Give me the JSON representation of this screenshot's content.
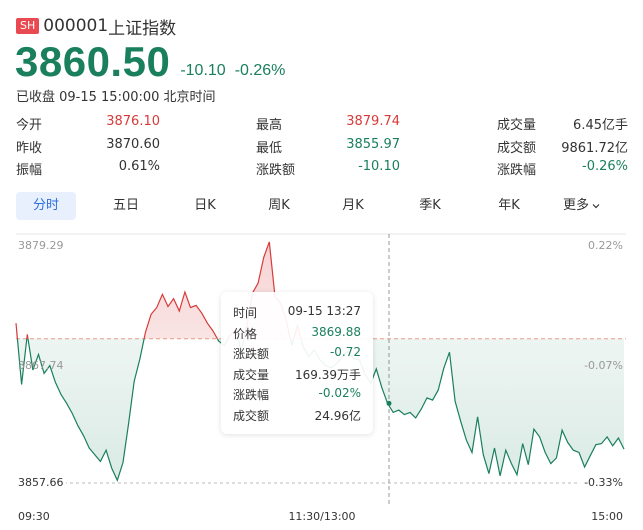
{
  "header": {
    "badge": "SH",
    "code": "000001",
    "name": "上证指数",
    "price": "3860.50",
    "change": "-10.10",
    "change_pct": "-0.26%",
    "status": "已收盘 09-15 15:00:00 北京时间"
  },
  "stats": {
    "rows": [
      [
        {
          "label": "今开",
          "value": "3876.10",
          "color": "red"
        },
        {
          "label": "最高",
          "value": "3879.74",
          "color": "red"
        },
        {
          "label": "成交量",
          "value": "6.45亿手",
          "color": "dark"
        }
      ],
      [
        {
          "label": "昨收",
          "value": "3870.60",
          "color": "dark"
        },
        {
          "label": "最低",
          "value": "3855.97",
          "color": "green"
        },
        {
          "label": "成交额",
          "value": "9861.72亿",
          "color": "dark"
        }
      ],
      [
        {
          "label": "振幅",
          "value": "0.61%",
          "color": "dark"
        },
        {
          "label": "涨跌额",
          "value": "-10.10",
          "color": "green"
        },
        {
          "label": "涨跌幅",
          "value": "-0.26%",
          "color": "green"
        }
      ]
    ]
  },
  "tabs": [
    "分时",
    "五日",
    "日K",
    "周K",
    "月K",
    "季K",
    "年K",
    "更多"
  ],
  "active_tab": "分时",
  "chart_labels": {
    "y_top": "3879.29",
    "y_mid": "3867.74",
    "y_bottom": "3857.66",
    "pct_top": "0.22%",
    "pct_mid": "-0.07%",
    "pct_bottom": "-0.33%",
    "x_start": "09:30",
    "x_mid": "11:30/13:00",
    "x_end": "15:00"
  },
  "tooltip": {
    "rows": [
      {
        "label": "时间",
        "value": "09-15 13:27",
        "color": "dark"
      },
      {
        "label": "价格",
        "value": "3869.88",
        "color": "green"
      },
      {
        "label": "涨跌额",
        "value": "-0.72",
        "color": "green"
      },
      {
        "label": "成交量",
        "value": "169.39万手",
        "color": "dark"
      },
      {
        "label": "涨跌幅",
        "value": "-0.02%",
        "color": "green"
      },
      {
        "label": "成交额",
        "value": "24.96亿",
        "color": "dark"
      }
    ]
  },
  "chart_data": {
    "type": "line",
    "title": "",
    "xlabel": "",
    "ylabel": "",
    "x_ticks": [
      "09:30",
      "11:30/13:00",
      "15:00"
    ],
    "y_ticks": [
      "3879.29",
      "3867.74",
      "3857.66"
    ],
    "ylim": [
      3857.66,
      3879.29
    ],
    "reference": 3870.6,
    "series": [
      {
        "values": [
          3872.0,
          3866.5,
          3871.0,
          3867.8,
          3869.2,
          3867.5,
          3868.2,
          3866.7,
          3865.6,
          3864.8,
          3863.9,
          3862.8,
          3861.9,
          3860.8,
          3860.2,
          3859.6,
          3860.6,
          3859.0,
          3857.9,
          3859.5,
          3863.0,
          3866.8,
          3868.8,
          3871.2,
          3872.8,
          3873.4,
          3874.6,
          3873.5,
          3874.2,
          3873.1,
          3874.8,
          3873.4,
          3873.6,
          3872.9,
          3872.0,
          3871.3,
          3870.4,
          3870.0,
          3870.9,
          3871.5,
          3869.5,
          3871.8,
          3874.7,
          3875.6,
          3877.9,
          3879.3,
          3874.4,
          3873.8,
          3872.3,
          3870.0,
          3871.8,
          3869.9,
          3869.0,
          3869.6,
          3868.7,
          3868.2,
          3868.0,
          3868.4,
          3869.0,
          3869.5,
          3868.8,
          3868.7,
          3867.4,
          3866.6,
          3867.9,
          3866.2,
          3864.8,
          3864.0,
          3864.2,
          3863.8,
          3864.0,
          3863.5,
          3864.3,
          3865.3,
          3865.1,
          3866.0,
          3868.0,
          3869.4,
          3865.0,
          3863.2,
          3861.5,
          3860.4,
          3863.6,
          3860.2,
          3858.5,
          3860.8,
          3858.3,
          3860.6,
          3859.4,
          3858.4,
          3861.2,
          3859.3,
          3862.5,
          3861.8,
          3860.4,
          3859.4,
          3859.9,
          3862.4,
          3861.3,
          3860.6,
          3860.4,
          3859.1,
          3860.1,
          3861.1,
          3861.2,
          3861.8,
          3861.0,
          3861.7,
          3860.7
        ]
      }
    ]
  },
  "colors": {
    "up": "#d83a3a",
    "down": "#1a7f5d",
    "accent": "#2f6fe0",
    "badge": "#e94a52"
  }
}
